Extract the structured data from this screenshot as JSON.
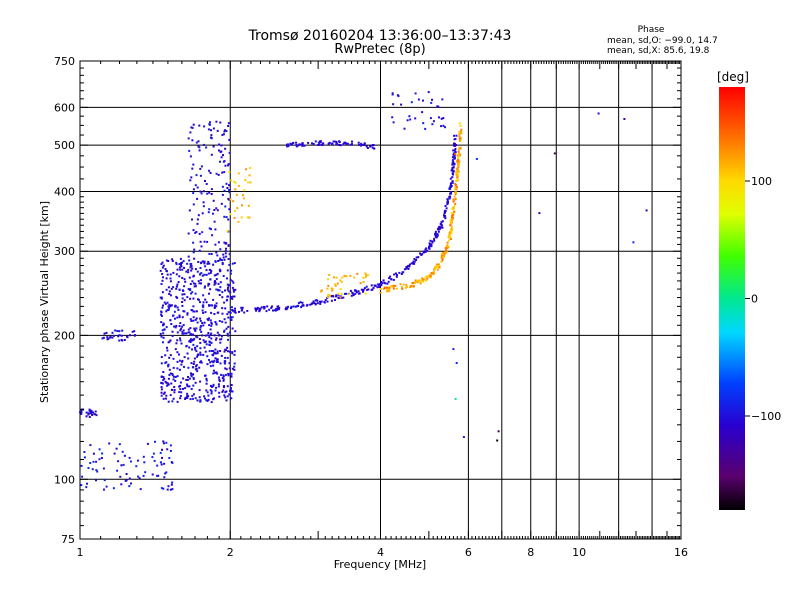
{
  "chart_data": {
    "type": "scatter",
    "title": "Tromsø 20160204 13:36:00–13:37:43",
    "subtitle": "RwPretec (8p)",
    "xlabel": "Frequency [MHz]",
    "ylabel": "Stationary phase Virtual Height [km]",
    "x_scale": "log",
    "y_scale": "log",
    "xlim": [
      1,
      16
    ],
    "ylim": [
      75,
      750
    ],
    "x_ticks": [
      1,
      2,
      4,
      6,
      8,
      10,
      16
    ],
    "x_tick_labels": [
      "1",
      "2",
      "4",
      "6",
      "8",
      "10",
      "16"
    ],
    "y_ticks": [
      75,
      100,
      200,
      300,
      400,
      500,
      600,
      750
    ],
    "y_tick_labels": [
      "75",
      "100",
      "200",
      "300",
      "400",
      "500",
      "600",
      "750"
    ],
    "grid": true,
    "stats": {
      "header": "Phase",
      "line1": "mean, sd,O: −99.0, 14.7",
      "line2": "mean, sd,X:  85.6, 19.8"
    },
    "colorbar": {
      "label": "[deg]",
      "range": [
        -180,
        180
      ],
      "ticks": [
        100,
        0,
        -100
      ],
      "tick_labels": [
        "100",
        "0",
        "−100"
      ],
      "colormap": "rainbow"
    },
    "traces": [
      {
        "kind": "cloud",
        "count": 700,
        "x": [
          1.45,
          2.05
        ],
        "y": [
          145,
          290
        ],
        "phase": [
          -115,
          -90
        ]
      },
      {
        "kind": "cloud",
        "count": 160,
        "x": [
          1.65,
          2.0
        ],
        "y": [
          280,
          560
        ],
        "phase": [
          -115,
          -90
        ]
      },
      {
        "kind": "cloud",
        "count": 90,
        "x": [
          1.0,
          1.55
        ],
        "y": [
          95,
          120
        ],
        "phase": [
          -115,
          -80
        ]
      },
      {
        "kind": "cloud",
        "count": 25,
        "x": [
          1.0,
          1.08
        ],
        "y": [
          135,
          140
        ],
        "phase": [
          -110,
          -95
        ]
      },
      {
        "kind": "cloud",
        "count": 30,
        "x": [
          1.1,
          1.3
        ],
        "y": [
          195,
          205
        ],
        "phase": [
          -110,
          -95
        ]
      },
      {
        "kind": "curve",
        "count": 320,
        "spread": 0.012,
        "phase": [
          -115,
          -95
        ],
        "x": [
          2.0,
          2.5,
          3.0,
          3.5,
          4.0,
          4.5,
          5.0,
          5.3,
          5.5,
          5.6,
          5.65
        ],
        "y": [
          225,
          228,
          235,
          245,
          255,
          275,
          305,
          340,
          390,
          450,
          520
        ]
      },
      {
        "kind": "curve",
        "count": 260,
        "spread": 0.012,
        "phase": [
          95,
          140
        ],
        "x": [
          4.0,
          4.6,
          5.0,
          5.3,
          5.5,
          5.6,
          5.7,
          5.75,
          5.8
        ],
        "y": [
          248,
          255,
          265,
          285,
          320,
          370,
          430,
          480,
          560
        ]
      },
      {
        "kind": "curve",
        "count": 80,
        "spread": 0.01,
        "phase": [
          -115,
          -95
        ],
        "x": [
          2.6,
          3.0,
          3.5,
          3.9
        ],
        "y": [
          500,
          505,
          505,
          495
        ]
      },
      {
        "kind": "cloud",
        "count": 40,
        "x": [
          3.0,
          3.8
        ],
        "y": [
          240,
          270
        ],
        "phase": [
          95,
          130
        ]
      },
      {
        "kind": "cloud",
        "count": 30,
        "x": [
          1.95,
          2.2
        ],
        "y": [
          330,
          450
        ],
        "phase": [
          90,
          130
        ]
      },
      {
        "kind": "cloud",
        "count": 35,
        "x": [
          4.2,
          5.4
        ],
        "y": [
          540,
          650
        ],
        "phase": [
          -110,
          -90
        ]
      },
      {
        "kind": "cloud",
        "count": 14,
        "x": [
          5.5,
          14.5
        ],
        "y": [
          100,
          640
        ],
        "phase": [
          -180,
          180
        ]
      }
    ]
  }
}
